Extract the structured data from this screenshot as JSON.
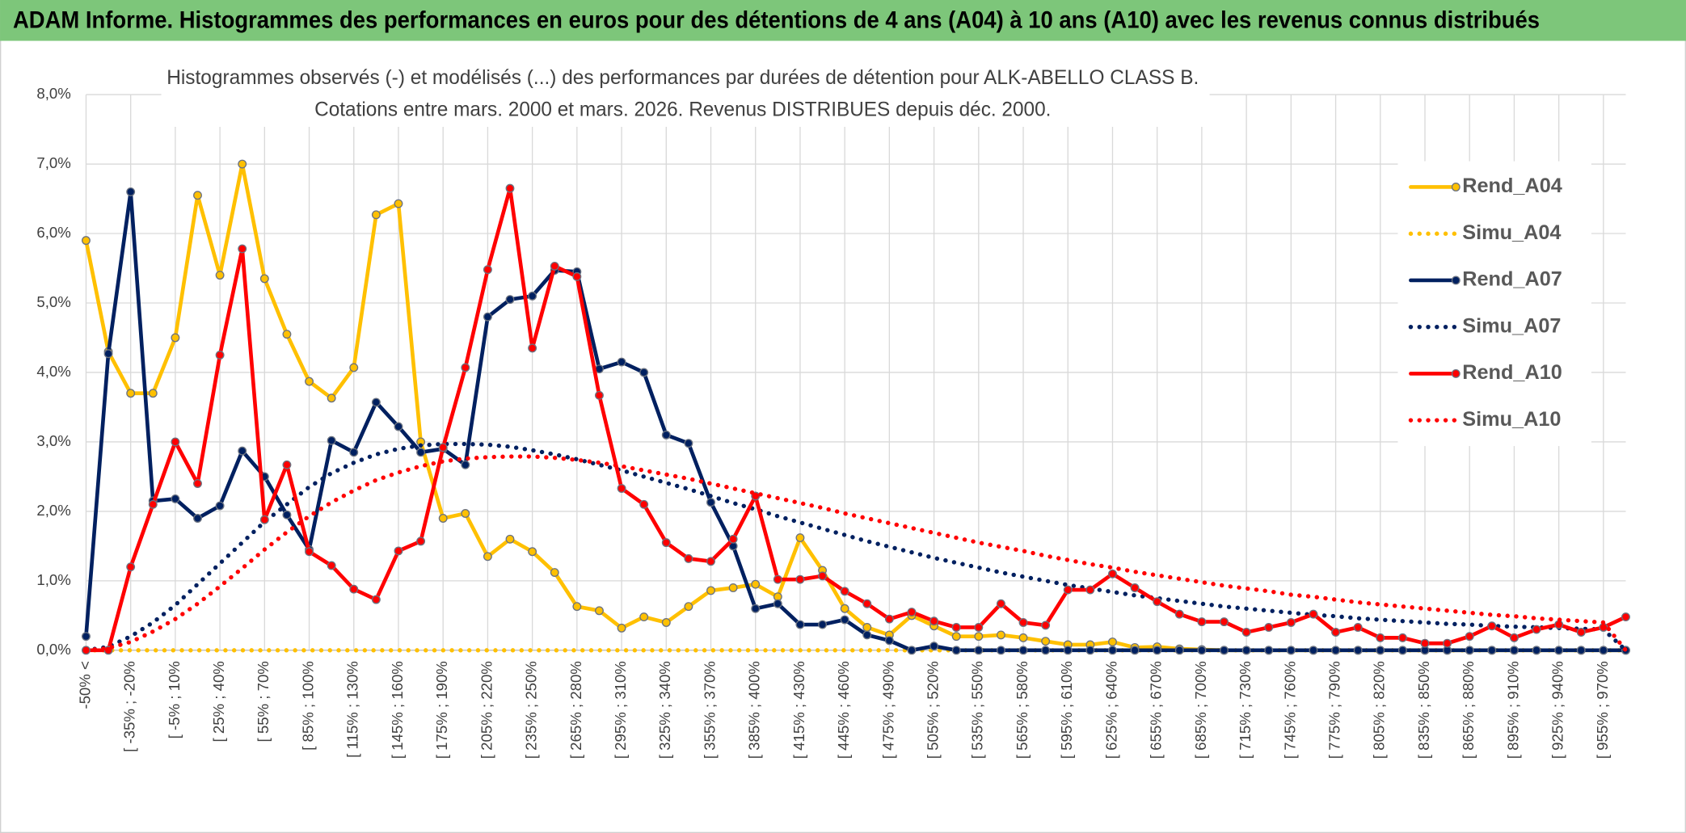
{
  "header": {
    "title": "ADAM Informe. Histogrammes des performances en euros pour des détentions de 4 ans (A04) à 10 ans (A10) avec les revenus connus distribués"
  },
  "chart_data": {
    "type": "line",
    "title": "Histogrammes observés (-) et modélisés (...) des performances par durées de détention pour ALK-ABELLO CLASS B.",
    "subtitle": "Cotations entre mars. 2000 et mars. 2026. Revenus DISTRIBUES depuis déc. 2000.",
    "categories": [
      "-50% <",
      null,
      "[ -35% ; -20%",
      null,
      "[ -5% ; 10%",
      null,
      "[ 25% ; 40%",
      null,
      "[ 55% ; 70%",
      null,
      "[ 85% ; 100%",
      null,
      "[ 115% ; 130%",
      null,
      "[ 145% ; 160%",
      null,
      "[ 175% ; 190%",
      null,
      "[ 205% ; 220%",
      null,
      "[ 235% ; 250%",
      null,
      "[ 265% ; 280%",
      null,
      "[ 295% ; 310%",
      null,
      "[ 325% ; 340%",
      null,
      "[ 355% ; 370%",
      null,
      "[ 385% ; 400%",
      null,
      "[ 415% ; 430%",
      null,
      "[ 445% ; 460%",
      null,
      "[ 475% ; 490%",
      null,
      "[ 505% ; 520%",
      null,
      "[ 535% ; 550%",
      null,
      "[ 565% ; 580%",
      null,
      "[ 595% ; 610%",
      null,
      "[ 625% ; 640%",
      null,
      "[ 655% ; 670%",
      null,
      "[ 685% ; 700%",
      null,
      "[ 715% ; 730%",
      null,
      "[ 745% ; 760%",
      null,
      "[ 775% ; 790%",
      null,
      "[ 805% ; 820%",
      null,
      "[ 835% ; 850%",
      null,
      "[ 865% ; 880%",
      null,
      "[ 895% ; 910%",
      null,
      "[ 925% ; 940%",
      null,
      "[ 955% ; 970%",
      null
    ],
    "ylim": [
      0,
      8
    ],
    "yticks": [
      {
        "value": 0,
        "label": "0,0%"
      },
      {
        "value": 1,
        "label": "1,0%"
      },
      {
        "value": 2,
        "label": "2,0%"
      },
      {
        "value": 3,
        "label": "3,0%"
      },
      {
        "value": 4,
        "label": "4,0%"
      },
      {
        "value": 5,
        "label": "5,0%"
      },
      {
        "value": 6,
        "label": "6,0%"
      },
      {
        "value": 7,
        "label": "7,0%"
      },
      {
        "value": 8,
        "label": "8,0%"
      }
    ],
    "grid": true,
    "legend": "right",
    "series": [
      {
        "name": "Rend_A04",
        "color": "#ffc000",
        "style": "solid",
        "markers": true,
        "values": [
          5.9,
          4.3,
          3.7,
          3.7,
          4.5,
          6.55,
          5.4,
          7.0,
          5.35,
          4.55,
          3.87,
          3.63,
          4.07,
          6.27,
          6.43,
          3.0,
          1.9,
          1.97,
          1.35,
          1.6,
          1.42,
          1.12,
          0.63,
          0.57,
          0.32,
          0.48,
          0.4,
          0.63,
          0.86,
          0.9,
          0.95,
          0.77,
          1.62,
          1.15,
          0.6,
          0.33,
          0.22,
          0.5,
          0.35,
          0.2,
          0.2,
          0.22,
          0.18,
          0.13,
          0.08,
          0.08,
          0.12,
          0.04,
          0.05,
          0.02,
          0.01,
          0,
          0,
          0,
          0,
          0,
          0,
          0,
          0,
          0,
          0,
          0,
          0,
          0,
          0,
          0,
          0,
          0,
          0,
          0
        ]
      },
      {
        "name": "Simu_A04",
        "color": "#ffc000",
        "style": "dotted",
        "markers": false,
        "values": [
          0,
          0,
          0,
          0,
          0,
          0,
          0,
          0,
          0,
          0,
          0,
          0,
          0,
          0,
          0,
          0,
          0,
          0,
          0,
          0,
          0,
          0,
          0,
          0,
          0,
          0,
          0,
          0,
          0,
          0,
          0,
          0,
          0,
          0,
          0,
          0,
          0,
          0,
          0,
          0,
          0,
          0,
          0,
          0,
          0,
          0,
          0,
          0,
          0,
          0,
          0,
          0,
          0,
          0,
          0,
          0,
          0,
          0,
          0,
          0,
          0,
          0,
          0,
          0,
          0,
          0,
          0,
          0,
          0,
          0
        ]
      },
      {
        "name": "Rend_A07",
        "color": "#002060",
        "style": "solid",
        "markers": true,
        "values": [
          0.2,
          4.27,
          6.6,
          2.15,
          2.18,
          1.9,
          2.08,
          2.87,
          2.5,
          1.95,
          1.45,
          3.02,
          2.85,
          3.57,
          3.22,
          2.85,
          2.9,
          2.67,
          4.8,
          5.05,
          5.1,
          5.47,
          5.45,
          4.05,
          4.15,
          4.0,
          3.1,
          2.98,
          2.13,
          1.5,
          0.6,
          0.67,
          0.37,
          0.37,
          0.44,
          0.22,
          0.14,
          0.0,
          0.06,
          0,
          0,
          0,
          0,
          0,
          0,
          0,
          0,
          0,
          0,
          0,
          0,
          0,
          0,
          0,
          0,
          0,
          0,
          0,
          0,
          0,
          0,
          0,
          0,
          0,
          0,
          0,
          0,
          0,
          0,
          0
        ]
      },
      {
        "name": "Simu_A07",
        "color": "#002060",
        "style": "dotted",
        "markers": false,
        "values": [
          0,
          0.05,
          0.2,
          0.4,
          0.65,
          0.95,
          1.25,
          1.55,
          1.85,
          2.1,
          2.35,
          2.55,
          2.7,
          2.82,
          2.9,
          2.95,
          2.97,
          2.97,
          2.96,
          2.93,
          2.88,
          2.82,
          2.75,
          2.67,
          2.59,
          2.5,
          2.41,
          2.32,
          2.22,
          2.12,
          2.03,
          1.93,
          1.84,
          1.75,
          1.66,
          1.57,
          1.49,
          1.41,
          1.33,
          1.26,
          1.19,
          1.12,
          1.06,
          1.0,
          0.94,
          0.89,
          0.84,
          0.79,
          0.75,
          0.71,
          0.67,
          0.63,
          0.6,
          0.57,
          0.54,
          0.51,
          0.49,
          0.46,
          0.44,
          0.42,
          0.4,
          0.38,
          0.37,
          0.35,
          0.34,
          0.33,
          0.32,
          0.31,
          0.3,
          0
        ]
      },
      {
        "name": "Rend_A10",
        "color": "#ff0000",
        "style": "solid",
        "markers": true,
        "values": [
          0.0,
          0.0,
          1.2,
          2.1,
          3.0,
          2.4,
          4.25,
          5.78,
          1.88,
          2.67,
          1.42,
          1.22,
          0.88,
          0.73,
          1.43,
          1.57,
          2.92,
          4.07,
          5.48,
          6.65,
          4.35,
          5.53,
          5.38,
          3.67,
          2.33,
          2.1,
          1.55,
          1.32,
          1.28,
          1.6,
          2.22,
          1.02,
          1.02,
          1.07,
          0.85,
          0.67,
          0.45,
          0.55,
          0.42,
          0.33,
          0.33,
          0.67,
          0.4,
          0.36,
          0.87,
          0.87,
          1.1,
          0.9,
          0.7,
          0.52,
          0.41,
          0.41,
          0.26,
          0.33,
          0.4,
          0.52,
          0.26,
          0.33,
          0.18,
          0.18,
          0.1,
          0.1,
          0.2,
          0.35,
          0.18,
          0.3,
          0.37,
          0.26,
          0.33,
          0.48
        ]
      },
      {
        "name": "Simu_A10",
        "color": "#ff0000",
        "style": "dotted",
        "markers": false,
        "values": [
          0,
          0.03,
          0.12,
          0.27,
          0.45,
          0.67,
          0.92,
          1.18,
          1.45,
          1.7,
          1.93,
          2.13,
          2.3,
          2.45,
          2.56,
          2.65,
          2.72,
          2.76,
          2.78,
          2.79,
          2.79,
          2.77,
          2.74,
          2.7,
          2.65,
          2.59,
          2.53,
          2.47,
          2.4,
          2.33,
          2.26,
          2.19,
          2.12,
          2.05,
          1.97,
          1.9,
          1.83,
          1.76,
          1.69,
          1.62,
          1.55,
          1.49,
          1.43,
          1.36,
          1.3,
          1.24,
          1.19,
          1.13,
          1.08,
          1.03,
          0.98,
          0.93,
          0.89,
          0.85,
          0.8,
          0.77,
          0.73,
          0.69,
          0.66,
          0.63,
          0.6,
          0.57,
          0.54,
          0.51,
          0.49,
          0.46,
          0.44,
          0.42,
          0.4,
          0
        ]
      }
    ]
  }
}
